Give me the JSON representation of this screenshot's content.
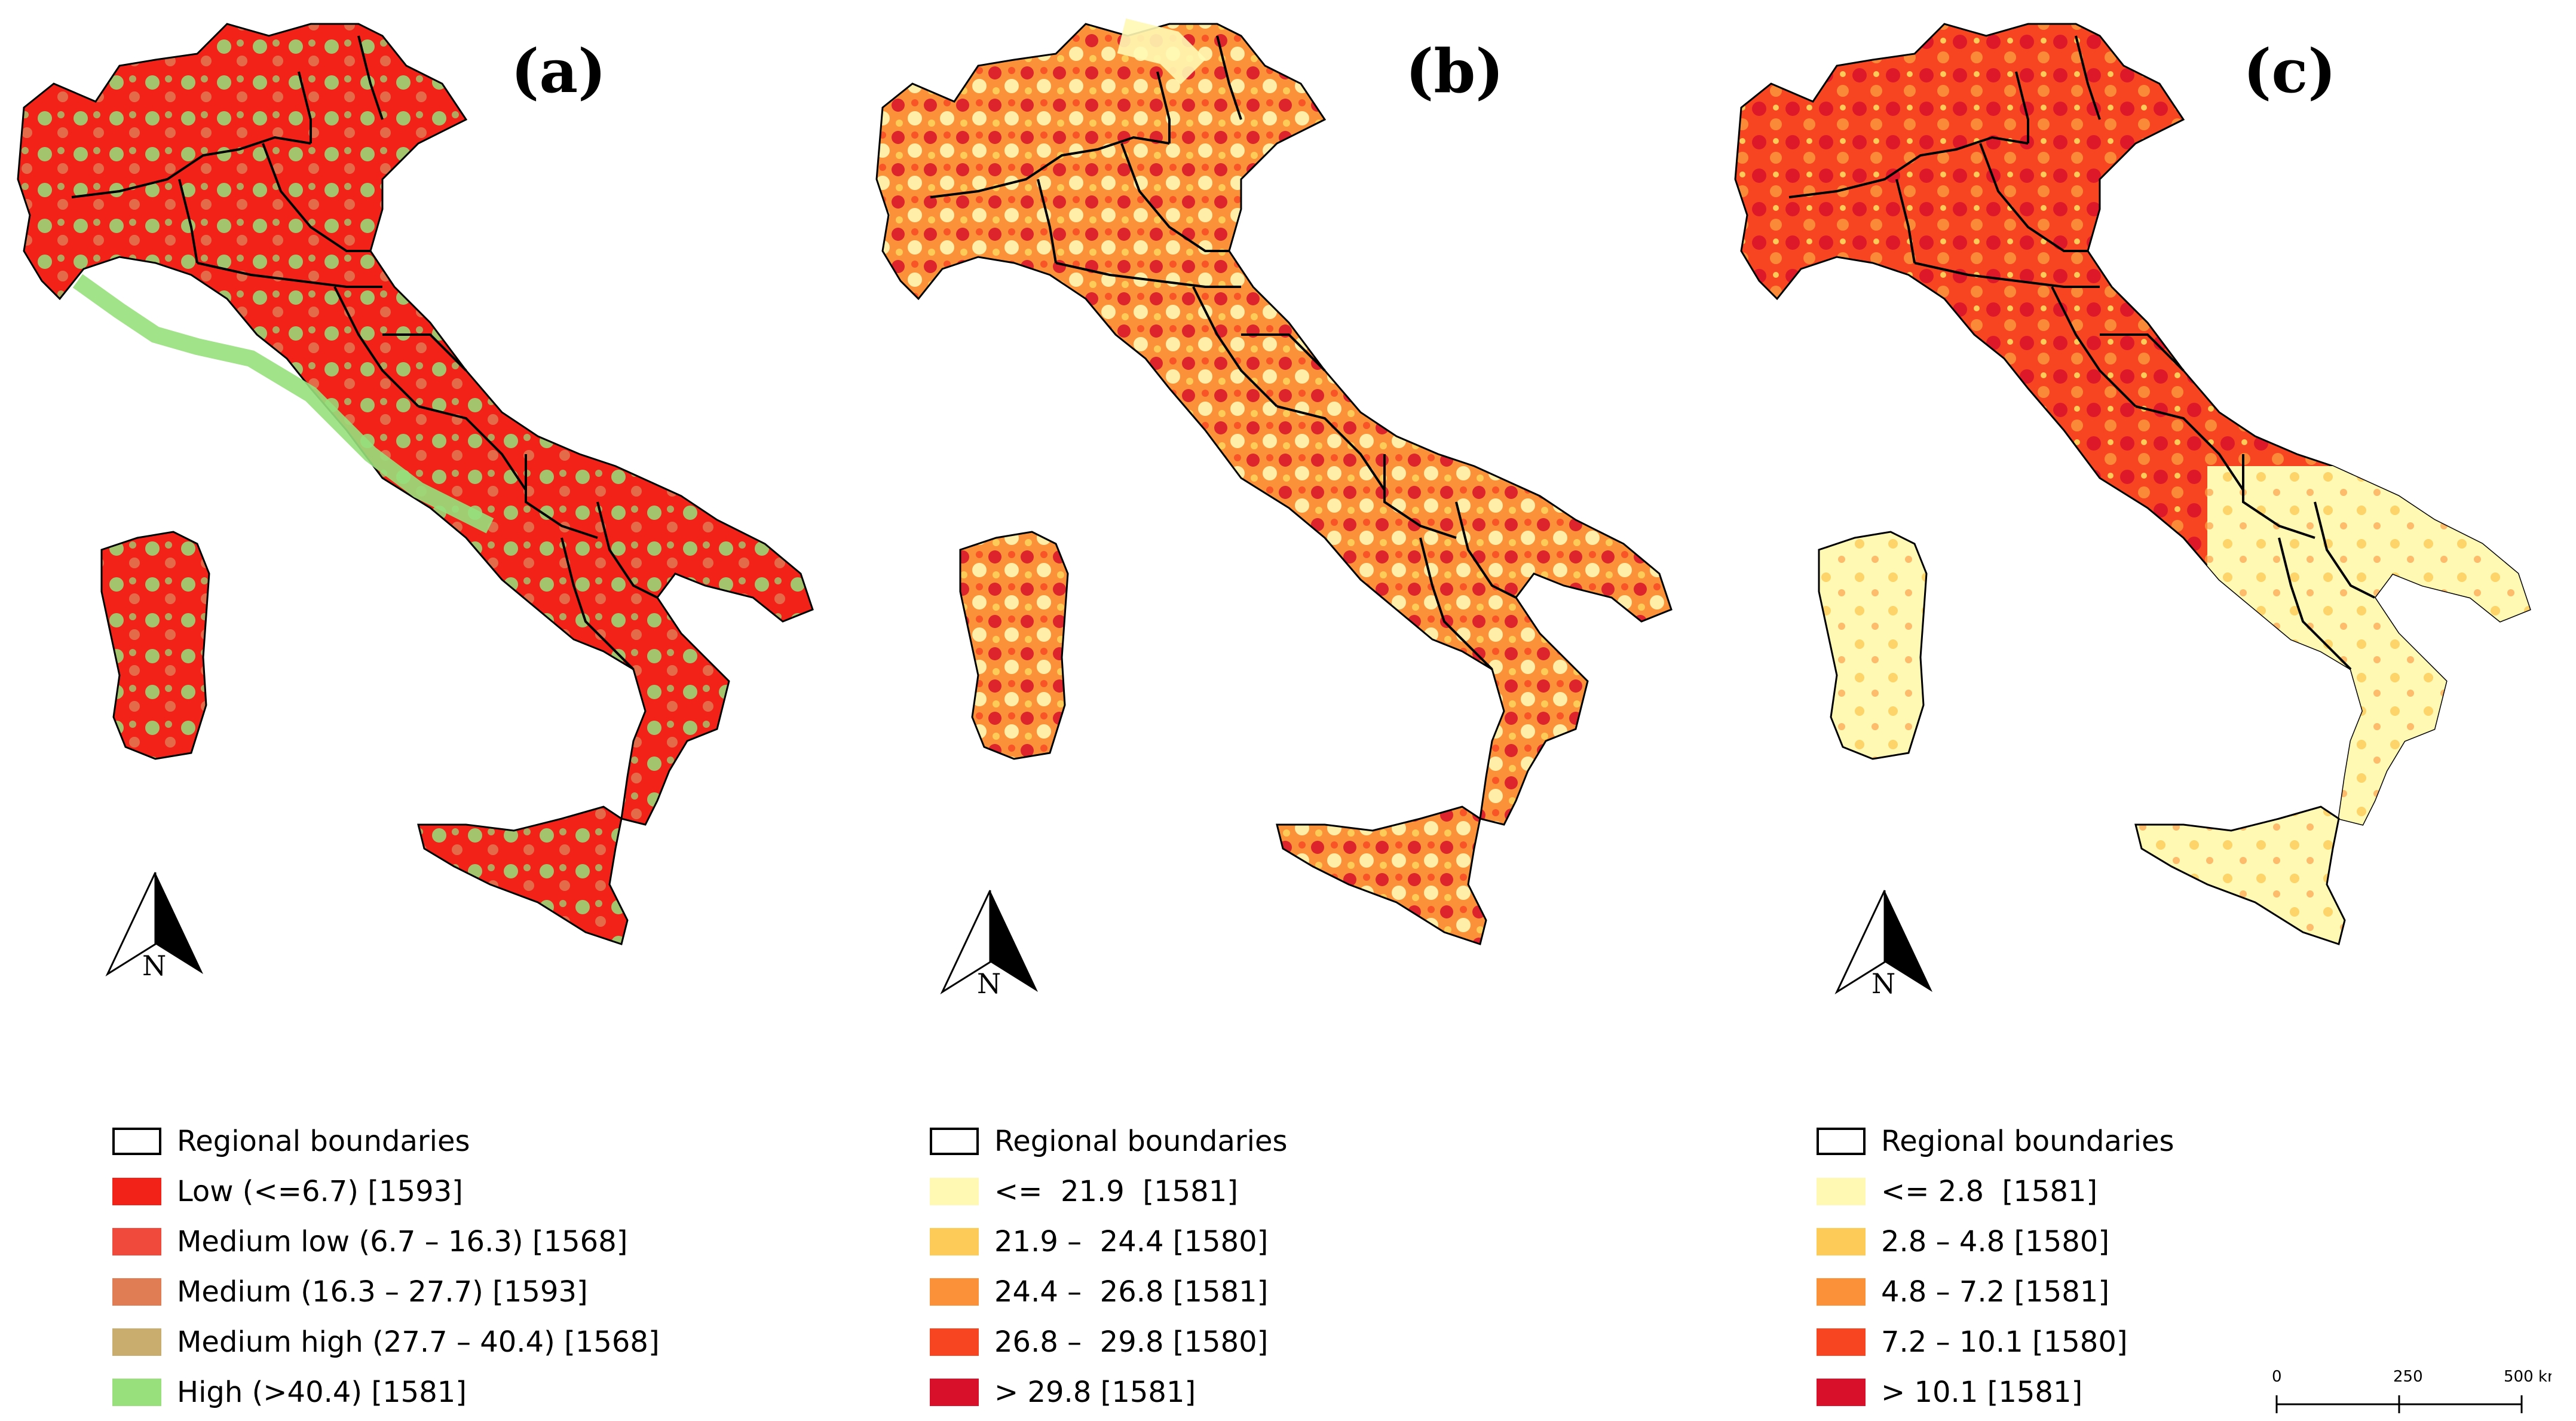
{
  "panels": [
    {
      "id": "a",
      "label": "(a)",
      "north_label": "N",
      "legend": [
        {
          "label": "Regional boundaries",
          "color": "#ffffff",
          "outline": true
        },
        {
          "label": "Low (<=6.7) [1593]",
          "color": "#f22218"
        },
        {
          "label": "Medium low (6.7 – 16.3) [1568]",
          "color": "#ef4a3c"
        },
        {
          "label": "Medium (16.3 – 27.7) [1593]",
          "color": "#e07d55"
        },
        {
          "label": "Medium high (27.7 – 40.4) [1568]",
          "color": "#c8ad6e"
        },
        {
          "label": "High (>40.4) [1581]",
          "color": "#97e07c"
        }
      ]
    },
    {
      "id": "b",
      "label": "(b)",
      "north_label": "N",
      "legend": [
        {
          "label": "Regional boundaries",
          "color": "#ffffff",
          "outline": true
        },
        {
          "label": "<=  21.9  [1581]",
          "color": "#fff9b4"
        },
        {
          "label": "21.9 –  24.4 [1580]",
          "color": "#fdcb57"
        },
        {
          "label": "24.4 –  26.8 [1581]",
          "color": "#fb923a"
        },
        {
          "label": "26.8 –  29.8 [1580]",
          "color": "#f74522"
        },
        {
          "label": "> 29.8 [1581]",
          "color": "#d8102a"
        }
      ]
    },
    {
      "id": "c",
      "label": "(c)",
      "north_label": "N",
      "legend": [
        {
          "label": "Regional boundaries",
          "color": "#ffffff",
          "outline": true
        },
        {
          "label": "<= 2.8  [1581]",
          "color": "#fff9b4"
        },
        {
          "label": "2.8 – 4.8 [1580]",
          "color": "#fdcb57"
        },
        {
          "label": "4.8 – 7.2 [1581]",
          "color": "#fb923a"
        },
        {
          "label": "7.2 – 10.1 [1580]",
          "color": "#f74522"
        },
        {
          "label": "> 10.1 [1581]",
          "color": "#d8102a"
        }
      ]
    }
  ],
  "scale_bar": {
    "labels": [
      "0",
      "250",
      "500 km"
    ]
  },
  "map_colors": {
    "a": {
      "base": "#f22218",
      "accent": "#97e07c",
      "mid": "#e07d55"
    },
    "b": {
      "base": "#fb923a",
      "accent": "#d8102a",
      "light": "#fff9b4"
    },
    "c": {
      "base": "#f74522",
      "accent": "#d8102a",
      "light": "#fff9b4"
    }
  }
}
